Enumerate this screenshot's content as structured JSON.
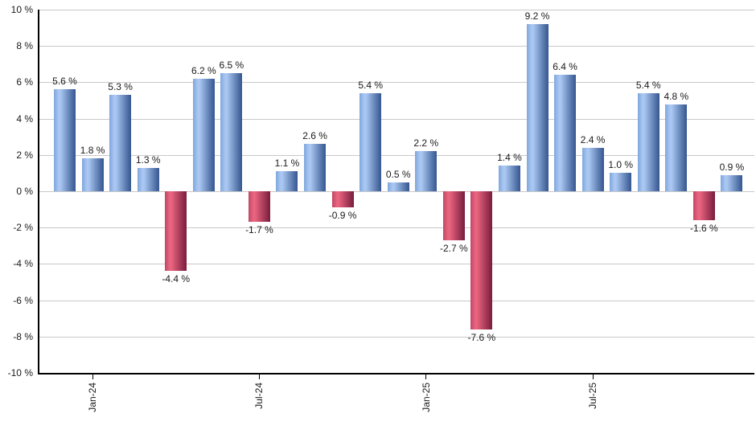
{
  "chart_data": {
    "type": "bar",
    "title": "",
    "xlabel": "",
    "ylabel": "",
    "ylim": [
      -10,
      10
    ],
    "y_tick_step": 2,
    "grid": true,
    "legend": false,
    "values": [
      5.6,
      1.8,
      5.3,
      1.3,
      -4.4,
      6.2,
      6.5,
      -1.7,
      1.1,
      2.6,
      -0.9,
      5.4,
      0.5,
      2.2,
      -2.7,
      -7.6,
      1.4,
      9.2,
      6.4,
      2.4,
      1.0,
      5.4,
      4.8,
      -1.6,
      0.9
    ],
    "value_labels": [
      "5.6 %",
      "1.8 %",
      "5.3 %",
      "1.3 %",
      "-4.4 %",
      "6.2 %",
      "6.5 %",
      "-1.7 %",
      "1.1 %",
      "2.6 %",
      "-0.9 %",
      "5.4 %",
      "0.5 %",
      "2.2 %",
      "-2.7 %",
      "-7.6 %",
      "1.4 %",
      "9.2 %",
      "6.4 %",
      "2.4 %",
      "1.0 %",
      "5.4 %",
      "4.8 %",
      "-1.6 %",
      "0.9 %"
    ],
    "y_tick_labels": [
      "10 %",
      "8 %",
      "6 %",
      "4 %",
      "2 %",
      "0 %",
      "-2 %",
      "-4 %",
      "-6 %",
      "-8 %",
      "-10 %"
    ],
    "x_ticks": [
      {
        "bar_index": 1,
        "label": "Jan-24"
      },
      {
        "bar_index": 7,
        "label": "Jul-24"
      },
      {
        "bar_index": 13,
        "label": "Jan-25"
      },
      {
        "bar_index": 19,
        "label": "Jul-25"
      }
    ],
    "colors": {
      "positive_edge": "#7FA6DD",
      "positive_light": "#A9C7F1",
      "positive_dark": "#3B5C95",
      "negative_edge": "#C04763",
      "negative_light": "#E8647F",
      "negative_dark": "#7E2040",
      "gridline": "#C8C8C8",
      "axis": "#000000",
      "label_text": "#1A1A1A"
    }
  }
}
